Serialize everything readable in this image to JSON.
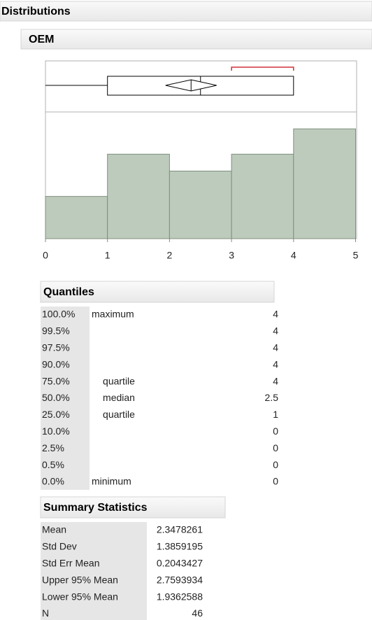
{
  "header": {
    "title": "Distributions"
  },
  "chart_data": {
    "type": "histogram",
    "title": "OEM",
    "bins": [
      0,
      1,
      2,
      3,
      4,
      5
    ],
    "values": [
      5,
      10,
      8,
      10,
      13
    ],
    "color": "#bccbbc",
    "edge_color": "#7f8f7f",
    "xlim": [
      0,
      5
    ],
    "xticks": [
      0,
      1,
      2,
      3,
      4,
      5
    ],
    "ylim": [
      0,
      15
    ],
    "shortest_half": [
      3,
      4
    ],
    "shortest_half_color": "#d0303a"
  },
  "quantiles": {
    "title": "Quantiles",
    "rows": [
      {
        "percent": "100.0%",
        "label": "maximum",
        "value": 4
      },
      {
        "percent": "99.5%",
        "value": 4
      },
      {
        "percent": "97.5%",
        "value": 4
      },
      {
        "percent": "90.0%",
        "value": 4
      },
      {
        "percent": "75.0%",
        "label": "quartile",
        "value": 4
      },
      {
        "percent": "50.0%",
        "label": "median",
        "value": 2.5
      },
      {
        "percent": "25.0%",
        "label": "quartile",
        "value": 1
      },
      {
        "percent": "10.0%",
        "value": 0
      },
      {
        "percent": "2.5%",
        "value": 0
      },
      {
        "percent": "0.5%",
        "value": 0
      },
      {
        "percent": "0.0%",
        "label": "minimum",
        "value": 0
      }
    ]
  },
  "summary_statistics": {
    "title": "Summary Statistics",
    "rows": [
      {
        "name": "Mean",
        "value": 2.3478261
      },
      {
        "name": "Std Dev",
        "value": 1.3859195
      },
      {
        "name": "Std Err Mean",
        "value": 0.2043427
      },
      {
        "name": "Upper 95% Mean",
        "value": 2.7593934
      },
      {
        "name": "Lower 95% Mean",
        "value": 1.9362588
      },
      {
        "name": "N",
        "value": 46
      }
    ]
  }
}
